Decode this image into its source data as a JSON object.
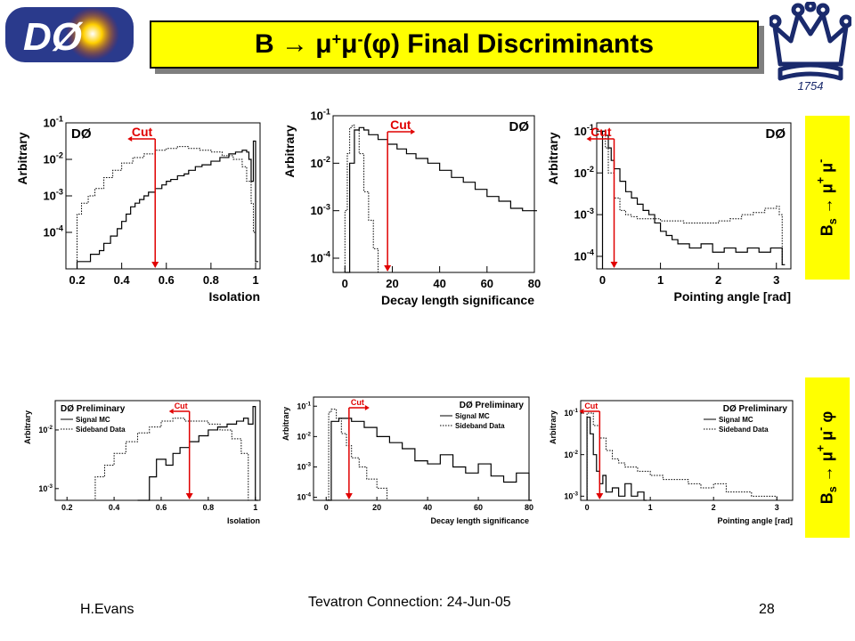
{
  "slide": {
    "title_prefix": "B → μ",
    "title_sup1": "+",
    "title_mid": " μ",
    "title_sup2": "-",
    "title_suffix": " (φ) Final Discriminants",
    "logo_left": "DØ",
    "logo_right_year": "1754",
    "side_label_top": {
      "b": "B",
      "sub": "s",
      "arrow": " → μ",
      "sup1": "+",
      "mid": " μ",
      "sup2": "-",
      "end": ""
    },
    "side_label_bottom": {
      "b": "B",
      "sub": "s",
      "arrow": " → μ",
      "sup1": "+",
      "mid": " μ",
      "sup2": "-",
      "end": " φ"
    },
    "footer_left": "H.Evans",
    "footer_center": "Tevatron Connection: 24-Jun-05",
    "footer_right": "28",
    "colors": {
      "highlight": "#ffff00",
      "cut": "#e00000",
      "shadow": "#7f7f7f"
    }
  },
  "chart_data": [
    {
      "type": "line",
      "id": "p1",
      "logy": true,
      "tag": "DØ",
      "tag_pos": "top-left",
      "xlabel": "Isolation",
      "ylabel": "Arbitrary",
      "xlim": [
        0.15,
        1.02
      ],
      "ylim_exp": [
        -5,
        -1
      ],
      "xticks": [
        0.2,
        0.4,
        0.6,
        0.8,
        1
      ],
      "xtick_labels": [
        "0.2",
        "0.4",
        "0.6",
        "0.8",
        "1"
      ],
      "yticks_exp": [
        -4,
        -3,
        -2,
        -1
      ],
      "ytick_labels": [
        "10-4",
        "10-3",
        "10-2",
        "10-1"
      ],
      "cut": {
        "x": 0.55,
        "label": "Cut",
        "direction": "left"
      },
      "legend": [],
      "series": [
        {
          "style": "solid",
          "x": [
            0.2,
            0.26,
            0.3,
            0.32,
            0.35,
            0.38,
            0.4,
            0.42,
            0.44,
            0.46,
            0.48,
            0.5,
            0.52,
            0.55,
            0.58,
            0.6,
            0.62,
            0.65,
            0.68,
            0.7,
            0.73,
            0.76,
            0.8,
            0.84,
            0.88,
            0.91,
            0.94,
            0.96,
            0.97,
            0.98,
            0.99,
            1.0
          ],
          "y": [
            -4.8,
            -4.6,
            -4.5,
            -4.3,
            -4.1,
            -3.9,
            -3.7,
            -3.5,
            -3.3,
            -3.2,
            -3.1,
            -3.0,
            -2.9,
            -2.8,
            -2.7,
            -2.6,
            -2.55,
            -2.45,
            -2.4,
            -2.3,
            -2.2,
            -2.15,
            -2.05,
            -1.95,
            -1.85,
            -1.8,
            -1.75,
            -1.8,
            -2.0,
            -2.6,
            -1.5,
            -4.8
          ]
        },
        {
          "style": "dotted",
          "x": [
            0.2,
            0.22,
            0.25,
            0.28,
            0.32,
            0.36,
            0.4,
            0.45,
            0.5,
            0.55,
            0.6,
            0.65,
            0.7,
            0.75,
            0.8,
            0.85,
            0.9,
            0.94,
            0.96,
            0.98,
            0.99
          ],
          "y": [
            -3.5,
            -3.2,
            -3.0,
            -2.8,
            -2.5,
            -2.3,
            -2.1,
            -1.95,
            -1.85,
            -1.75,
            -1.7,
            -1.65,
            -1.7,
            -1.75,
            -1.8,
            -1.9,
            -2.0,
            -2.2,
            -2.6,
            -3.2,
            -4.0
          ]
        }
      ]
    },
    {
      "type": "line",
      "id": "p2",
      "logy": true,
      "tag": "DØ",
      "tag_pos": "top-right",
      "xlabel": "Decay length significance",
      "ylabel": "Arbitrary",
      "xlim": [
        -5,
        80
      ],
      "ylim_exp": [
        -4.3,
        -1
      ],
      "xticks": [
        0,
        20,
        40,
        60,
        80
      ],
      "xtick_labels": [
        "0",
        "20",
        "40",
        "60",
        "80"
      ],
      "yticks_exp": [
        -4,
        -3,
        -2,
        -1
      ],
      "ytick_labels": [
        "10-4",
        "10-3",
        "10-2",
        "10-1"
      ],
      "cut": {
        "x": 18,
        "label": "Cut",
        "direction": "right"
      },
      "legend": [],
      "series": [
        {
          "style": "solid",
          "x": [
            0,
            2,
            4,
            6,
            8,
            10,
            14,
            18,
            22,
            26,
            30,
            35,
            40,
            45,
            50,
            55,
            60,
            65,
            70,
            75,
            78,
            80
          ],
          "y": [
            -4.3,
            -2.0,
            -1.3,
            -1.25,
            -1.3,
            -1.4,
            -1.5,
            -1.6,
            -1.7,
            -1.8,
            -1.9,
            -2.0,
            -2.15,
            -2.3,
            -2.4,
            -2.55,
            -2.7,
            -2.8,
            -2.95,
            -3.0,
            -3.0,
            -3.0
          ]
        },
        {
          "style": "dotted",
          "x": [
            -2,
            0,
            1,
            2,
            3,
            4,
            6,
            8,
            10,
            12,
            14
          ],
          "y": [
            -4.3,
            -3.0,
            -1.8,
            -1.25,
            -1.2,
            -1.3,
            -1.8,
            -2.6,
            -3.2,
            -3.8,
            -4.3
          ]
        }
      ]
    },
    {
      "type": "line",
      "id": "p3",
      "logy": true,
      "tag": "DØ",
      "tag_pos": "top-right",
      "xlabel": "Pointing angle [rad]",
      "ylabel": "Arbitrary",
      "xlim": [
        -0.1,
        3.25
      ],
      "ylim_exp": [
        -4.3,
        -0.8
      ],
      "xticks": [
        0,
        1,
        2,
        3
      ],
      "xtick_labels": [
        "0",
        "1",
        "2",
        "3"
      ],
      "yticks_exp": [
        -4,
        -3,
        -2,
        -1
      ],
      "ytick_labels": [
        "10-4",
        "10-3",
        "10-2",
        "10-1"
      ],
      "cut": {
        "x": 0.2,
        "label": "Cut",
        "direction": "left"
      },
      "legend": [],
      "series": [
        {
          "style": "solid",
          "x": [
            0.0,
            0.05,
            0.1,
            0.15,
            0.2,
            0.3,
            0.4,
            0.5,
            0.6,
            0.7,
            0.8,
            0.9,
            1.0,
            1.1,
            1.2,
            1.3,
            1.5,
            1.7,
            1.9,
            2.1,
            2.3,
            2.5,
            2.7,
            2.9,
            3.1
          ],
          "y": [
            -1.0,
            -1.1,
            -1.4,
            -1.7,
            -1.9,
            -2.2,
            -2.45,
            -2.6,
            -2.75,
            -2.9,
            -3.0,
            -3.2,
            -3.4,
            -3.5,
            -3.6,
            -3.7,
            -3.8,
            -3.7,
            -3.9,
            -3.8,
            -3.9,
            -3.8,
            -3.9,
            -3.8,
            -4.2
          ]
        },
        {
          "style": "dotted",
          "x": [
            0.0,
            0.05,
            0.1,
            0.2,
            0.3,
            0.4,
            0.5,
            0.6,
            0.8,
            1.0,
            1.2,
            1.4,
            1.6,
            1.8,
            2.0,
            2.2,
            2.4,
            2.6,
            2.8,
            3.0,
            3.05,
            3.1
          ],
          "y": [
            -1.1,
            -1.4,
            -2.0,
            -2.6,
            -2.9,
            -3.0,
            -3.05,
            -3.1,
            -3.1,
            -3.15,
            -3.15,
            -3.2,
            -3.2,
            -3.2,
            -3.15,
            -3.1,
            -3.0,
            -2.95,
            -2.85,
            -2.8,
            -3.0,
            -4.2
          ]
        }
      ]
    },
    {
      "type": "line",
      "id": "p4",
      "logy": true,
      "tag": "DØ Preliminary",
      "tag_pos": "top-left",
      "xlabel": "Isolation",
      "ylabel": "Arbitrary",
      "xlim": [
        0.15,
        1.02
      ],
      "ylim_exp": [
        -3.2,
        -1.5
      ],
      "xticks": [
        0.2,
        0.4,
        0.6,
        0.8,
        1
      ],
      "xtick_labels": [
        "0.2",
        "0.4",
        "0.6",
        "0.8",
        "1"
      ],
      "yticks_exp": [
        -3,
        -2
      ],
      "ytick_labels": [
        "10-3",
        "10-2"
      ],
      "cut": {
        "x": 0.72,
        "label": "Cut",
        "direction": "left"
      },
      "legend": [
        "Signal MC",
        "Sideband Data"
      ],
      "series": [
        {
          "style": "solid",
          "x": [
            0.5,
            0.55,
            0.58,
            0.62,
            0.65,
            0.68,
            0.72,
            0.76,
            0.8,
            0.84,
            0.88,
            0.92,
            0.95,
            0.97,
            0.99,
            1.0
          ],
          "y": [
            -3.2,
            -2.8,
            -2.5,
            -2.6,
            -2.4,
            -2.3,
            -2.2,
            -2.1,
            -2.0,
            -1.95,
            -1.9,
            -1.85,
            -1.8,
            -1.9,
            -1.6,
            -3.2
          ]
        },
        {
          "style": "dotted",
          "x": [
            0.28,
            0.32,
            0.36,
            0.4,
            0.45,
            0.5,
            0.55,
            0.6,
            0.65,
            0.7,
            0.75,
            0.8,
            0.85,
            0.9,
            0.94,
            0.97
          ],
          "y": [
            -3.2,
            -2.8,
            -2.6,
            -2.4,
            -2.2,
            -2.05,
            -1.95,
            -1.85,
            -1.8,
            -1.85,
            -1.85,
            -1.9,
            -2.0,
            -2.15,
            -2.4,
            -3.2
          ]
        }
      ]
    },
    {
      "type": "line",
      "id": "p5",
      "logy": true,
      "tag": "DØ Preliminary",
      "tag_pos": "top-right",
      "xlabel": "Decay length significance",
      "ylabel": "Arbitrary",
      "xlim": [
        -5,
        80
      ],
      "ylim_exp": [
        -4.1,
        -0.7
      ],
      "xticks": [
        0,
        20,
        40,
        60,
        80
      ],
      "xtick_labels": [
        "0",
        "20",
        "40",
        "60",
        "80"
      ],
      "yticks_exp": [
        -4,
        -3,
        -2,
        -1
      ],
      "ytick_labels": [
        "10-4",
        "10-3",
        "10-2",
        "10-1"
      ],
      "cut": {
        "x": 9,
        "label": "Cut",
        "direction": "right"
      },
      "legend": [
        "Signal MC",
        "Sideband Data"
      ],
      "series": [
        {
          "style": "solid",
          "x": [
            0,
            2,
            5,
            10,
            15,
            20,
            25,
            30,
            35,
            40,
            45,
            50,
            55,
            60,
            65,
            70,
            75,
            80
          ],
          "y": [
            -4.1,
            -1.5,
            -1.4,
            -1.5,
            -1.7,
            -2.0,
            -2.2,
            -2.4,
            -2.8,
            -2.9,
            -2.6,
            -3.0,
            -3.2,
            -2.9,
            -3.3,
            -3.5,
            -3.2,
            -4.1
          ]
        },
        {
          "style": "dotted",
          "x": [
            0,
            1,
            2,
            4,
            6,
            8,
            10,
            13,
            16,
            20,
            24
          ],
          "y": [
            -4.1,
            -1.2,
            -1.1,
            -1.4,
            -1.9,
            -2.3,
            -2.7,
            -3.0,
            -3.4,
            -3.7,
            -4.1
          ]
        }
      ]
    },
    {
      "type": "line",
      "id": "p6",
      "logy": true,
      "tag": "DØ Preliminary",
      "tag_pos": "top-right",
      "xlabel": "Pointing angle [rad]",
      "ylabel": "Arbitrary",
      "xlim": [
        -0.1,
        3.25
      ],
      "ylim_exp": [
        -3.1,
        -0.7
      ],
      "xticks": [
        0,
        1,
        2,
        3
      ],
      "xtick_labels": [
        "0",
        "1",
        "2",
        "3"
      ],
      "yticks_exp": [
        -3,
        -2,
        -1
      ],
      "ytick_labels": [
        "10-3",
        "10-2",
        "10-1"
      ],
      "cut": {
        "x": 0.2,
        "label": "Cut",
        "direction": "left"
      },
      "legend": [
        "Signal MC",
        "Sideband Data"
      ],
      "series": [
        {
          "style": "solid",
          "x": [
            0.0,
            0.05,
            0.1,
            0.15,
            0.2,
            0.25,
            0.3,
            0.4,
            0.5,
            0.6,
            0.7,
            0.8,
            0.9
          ],
          "y": [
            -1.1,
            -1.5,
            -2.0,
            -2.4,
            -2.7,
            -2.5,
            -2.9,
            -2.8,
            -3.0,
            -2.7,
            -3.0,
            -2.9,
            -3.1
          ]
        },
        {
          "style": "dotted",
          "x": [
            0.0,
            0.1,
            0.2,
            0.3,
            0.4,
            0.5,
            0.6,
            0.8,
            1.0,
            1.2,
            1.4,
            1.6,
            1.8,
            2.0,
            2.2,
            2.4,
            2.6,
            2.8,
            3.0
          ],
          "y": [
            -1.0,
            -1.3,
            -1.6,
            -1.9,
            -2.1,
            -2.2,
            -2.3,
            -2.4,
            -2.5,
            -2.6,
            -2.6,
            -2.7,
            -2.8,
            -2.7,
            -2.9,
            -2.9,
            -3.0,
            -3.0,
            -3.1
          ]
        }
      ]
    }
  ]
}
